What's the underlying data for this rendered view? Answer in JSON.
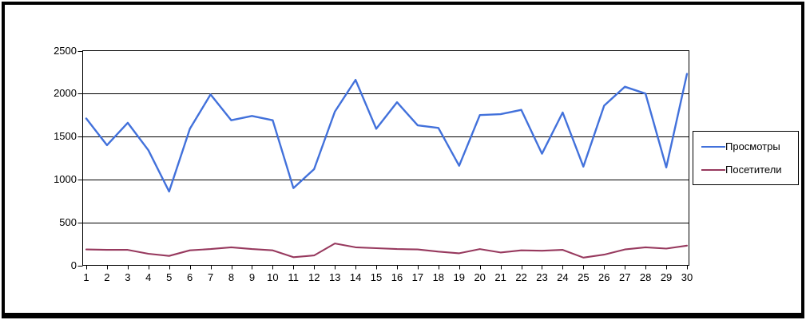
{
  "chart_data": {
    "type": "line",
    "title": "",
    "xlabel": "",
    "ylabel": "",
    "x": [
      1,
      2,
      3,
      4,
      5,
      6,
      7,
      8,
      9,
      10,
      11,
      12,
      13,
      14,
      15,
      16,
      17,
      18,
      19,
      20,
      21,
      22,
      23,
      24,
      25,
      26,
      27,
      28,
      29,
      30
    ],
    "y_ticks": [
      0,
      500,
      1000,
      1500,
      2000,
      2500
    ],
    "ylim": [
      0,
      2500
    ],
    "grid": "horizontal",
    "legend_position": "right",
    "plot_border_color": "#000000",
    "series": [
      {
        "name": "Просмотры",
        "color": "#4271db",
        "values": [
          1710,
          1400,
          1660,
          1340,
          860,
          1590,
          1990,
          1690,
          1740,
          1690,
          900,
          1120,
          1790,
          2160,
          1590,
          1900,
          1630,
          1600,
          1160,
          1750,
          1760,
          1810,
          1300,
          1780,
          1150,
          1860,
          2080,
          2000,
          1140,
          2230
        ]
      },
      {
        "name": "Посетители",
        "color": "#97395e",
        "values": [
          185,
          180,
          180,
          135,
          110,
          175,
          190,
          210,
          190,
          175,
          95,
          115,
          255,
          210,
          200,
          190,
          185,
          160,
          140,
          190,
          150,
          175,
          170,
          180,
          90,
          125,
          185,
          210,
          195,
          230
        ]
      }
    ]
  }
}
